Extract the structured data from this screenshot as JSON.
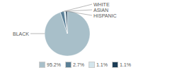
{
  "chart_data": {
    "type": "pie",
    "categories": [
      "BLACK",
      "WHITE",
      "ASIAN",
      "HISPANIC"
    ],
    "values": [
      95.2,
      2.7,
      1.1,
      1.1
    ],
    "value_labels": [
      "95.2%",
      "2.7%",
      "1.1%",
      "1.1%"
    ],
    "colors": [
      "#a8bfc9",
      "#5a7f96",
      "#d4e5ec",
      "#1c3d56"
    ],
    "legend": "bottom"
  }
}
